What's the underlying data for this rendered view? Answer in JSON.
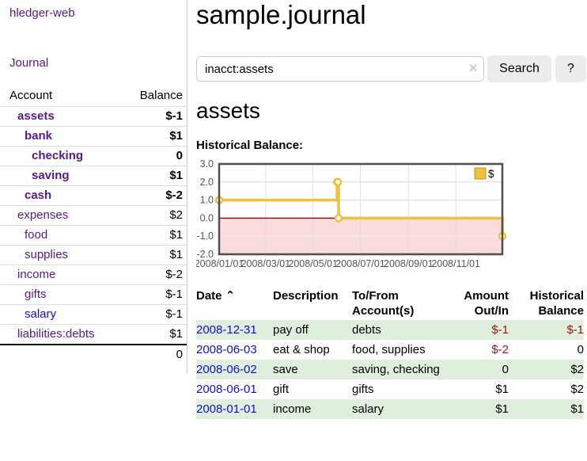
{
  "colors": {
    "purple_link": "#551a8b",
    "blue_link": "#0f0fdd",
    "negative_red": "#941616",
    "negative_muted_rose": "#c17777",
    "row_green": "#e0eedd",
    "button_gray": "#ececec",
    "chart_gold": "#edc240"
  },
  "sidebar": {
    "brand": "hledger-web",
    "journal_link": "Journal",
    "accounts_table": {
      "col_account": "Account",
      "col_balance": "Balance",
      "rows": [
        {
          "name": "assets",
          "balance": "$-1"
        },
        {
          "name": "bank",
          "balance": "$1"
        },
        {
          "name": "checking",
          "balance": "0"
        },
        {
          "name": "saving",
          "balance": "$1"
        },
        {
          "name": "cash",
          "balance": "$-2"
        },
        {
          "name": "expenses",
          "balance": "$2"
        },
        {
          "name": "food",
          "balance": "$1"
        },
        {
          "name": "supplies",
          "balance": "$1"
        },
        {
          "name": "income",
          "balance": "$-2"
        },
        {
          "name": "gifts",
          "balance": "$-1"
        },
        {
          "name": "salary",
          "balance": "$-1"
        },
        {
          "name": "liabilities:debts",
          "balance": "$1"
        }
      ],
      "total": "0"
    }
  },
  "header": {
    "title": "sample.journal"
  },
  "search": {
    "value": "inacct:assets",
    "clear_icon": "×",
    "button_label": "Search",
    "help_label": "?"
  },
  "account_page": {
    "heading": "assets",
    "chart_title": "Historical Balance:"
  },
  "chart_data": {
    "type": "line",
    "title": "Historical Balance:",
    "style": "steps-with-markers",
    "series": [
      {
        "name": "$",
        "color": "#edc240",
        "points": [
          {
            "date": "2008-01-01",
            "value": 1
          },
          {
            "date": "2008-06-01",
            "value": 2
          },
          {
            "date": "2008-06-02",
            "value": 2
          },
          {
            "date": "2008-06-03",
            "value": 0
          },
          {
            "date": "2008-12-31",
            "value": -1
          }
        ]
      }
    ],
    "x_range": [
      "2008-01-01",
      "2008-12-31"
    ],
    "ylim": [
      -2,
      3
    ],
    "y_ticks": [
      "3.0",
      "2.0",
      "1.0",
      "0.0",
      "-1.0",
      "-2.0"
    ],
    "x_ticks": [
      "2008/01/01",
      "2008/03/01",
      "2008/05/01",
      "2008/07/01",
      "2008/09/01",
      "2008/11/01"
    ],
    "grid": true,
    "zero_line_color": "#8b0000",
    "negative_region_color": "#fadcdc",
    "legend": {
      "label": "$",
      "position": "top-right"
    }
  },
  "register_table": {
    "headers": {
      "date": "Date",
      "sort_icon": "⌃",
      "description": "Description",
      "account_line1": "To/From",
      "account_line2": "Account(s)",
      "amount_line1": "Amount",
      "amount_line2": "Out/In",
      "balance_line1": "Historical",
      "balance_line2": "Balance"
    },
    "rows": [
      {
        "date": "2008-12-31",
        "description": "pay off",
        "account": "debts",
        "amount": "$-1",
        "balance": "$-1"
      },
      {
        "date": "2008-06-03",
        "description": "eat & shop",
        "account": "food, supplies",
        "amount": "$-2",
        "balance": "0"
      },
      {
        "date": "2008-06-02",
        "description": "save",
        "account": "saving, checking",
        "amount": "0",
        "balance": "$2"
      },
      {
        "date": "2008-06-01",
        "description": "gift",
        "account": "gifts",
        "amount": "$1",
        "balance": "$2"
      },
      {
        "date": "2008-01-01",
        "description": "income",
        "account": "salary",
        "amount": "$1",
        "balance": "$1"
      }
    ]
  }
}
